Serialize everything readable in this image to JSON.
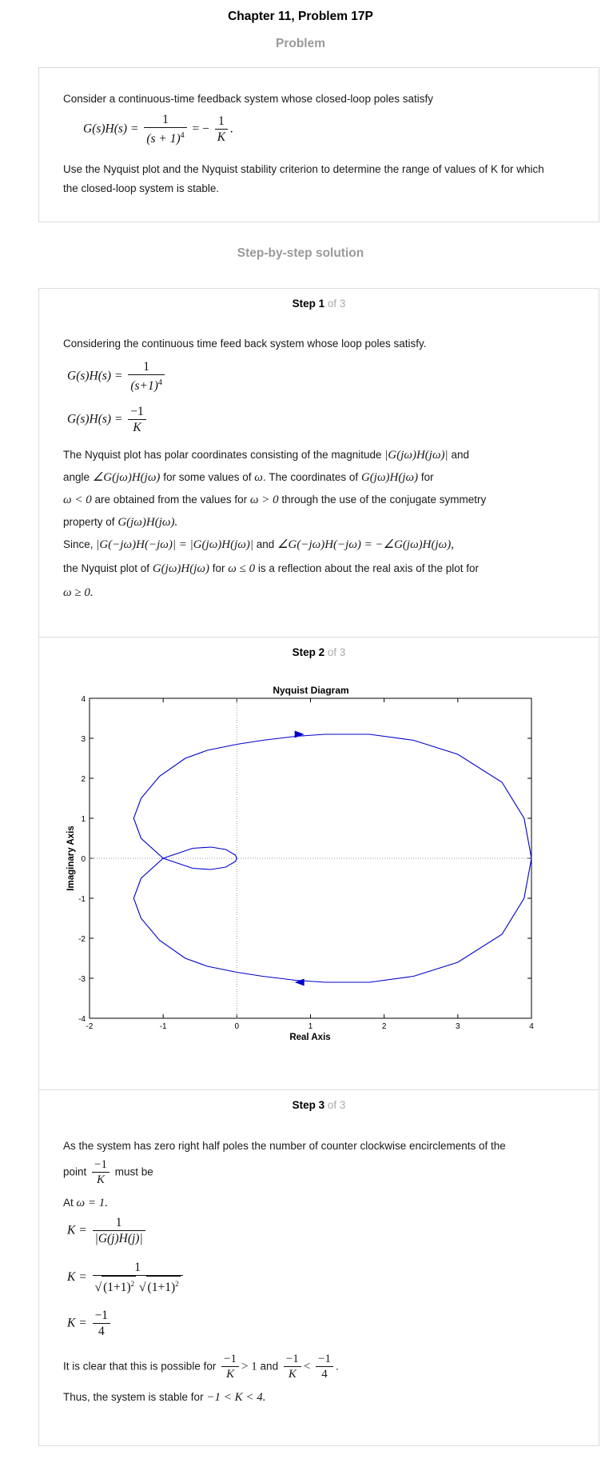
{
  "header": {
    "title": "Chapter 11, Problem 17P",
    "problem_heading": "Problem",
    "solution_heading": "Step-by-step solution"
  },
  "problem": {
    "intro": "Consider a continuous-time feedback system whose closed-loop poles satisfy",
    "eq_lhs": "G(s)H(s) =",
    "eq_num": "1",
    "eq_den": "(s + 1)",
    "eq_den_exp": "4",
    "eq_mid": "= −",
    "eq_rnum": "1",
    "eq_rden": "K",
    "eq_end": ".",
    "question": "Use the Nyquist plot and the Nyquist stability criterion to determine the range of values of K for which the closed-loop system is stable."
  },
  "steps": {
    "of_label": "of 3",
    "step_word": "Step",
    "s1": {
      "num": "1",
      "intro": "Considering the continuous time feed back system whose loop poles satisfy.",
      "eq1_lhs": "G(s)H(s) =",
      "eq1_num": "1",
      "eq1_den": "(s+1)",
      "eq1_exp": "4",
      "eq2_lhs": "G(s)H(s) =",
      "eq2_num": "−1",
      "eq2_den": "K",
      "p1_a": "The Nyquist plot has polar coordinates consisting of the magnitude",
      "p1_mag": "|G(jω)H(jω)|",
      "p1_b": "and",
      "p1_c": "angle",
      "p1_ang": "∠G(jω)H(jω)",
      "p1_d": "for some values of",
      "p1_w": "ω",
      "p1_e": ". The coordinates of",
      "p1_gh": "G(jω)H(jω)",
      "p1_f": "for",
      "p1_wlt": "ω < 0",
      "p1_g": "are obtained from the values for",
      "p1_wgt": "ω > 0",
      "p1_h": "through the use of the conjugate symmetry",
      "p1_i": "property of",
      "p1_gh2": "G(jω)H(jω).",
      "p2_a": "Since,",
      "p2_eq1": "|G(−jω)H(−jω)| = |G(jω)H(jω)|",
      "p2_b": "and",
      "p2_eq2": "∠G(−jω)H(−jω) = −∠G(jω)H(jω),",
      "p2_c": "the Nyquist plot of",
      "p2_gh": "G(jω)H(jω)",
      "p2_d": "for",
      "p2_wle": "ω ≤ 0",
      "p2_e": "is a reflection about the real axis of the plot for",
      "p2_wge": "ω ≥ 0."
    },
    "s2": {
      "num": "2"
    },
    "s3": {
      "num": "3",
      "p1": "As the system has zero right half poles the number of counter clockwise encirclements of the",
      "p2_a": "point",
      "p2_num": "−1",
      "p2_den": "K",
      "p2_b": "must be",
      "at_a": "At",
      "at_eq": "ω = 1.",
      "k1_lhs": "K =",
      "k1_num": "1",
      "k1_den": "|G(j)H(j)|",
      "k2_lhs": "K =",
      "k2_num": "1",
      "k2_den_a": "(1+1)",
      "k2_den_b": "(1+1)",
      "k2_exp": "2",
      "k3_lhs": "K =",
      "k3_num": "−1",
      "k3_den": "4",
      "clear_a": "It is clear that this is possible for",
      "clear_n1": "−1",
      "clear_d1": "K",
      "clear_gt": "> 1",
      "clear_and": "and",
      "clear_n2": "−1",
      "clear_d2": "K",
      "clear_lt": "<",
      "clear_n3": "−1",
      "clear_d3": "4",
      "clear_end": ".",
      "thus": "Thus, the system is stable for",
      "thus_eq": "−1 < K < 4."
    }
  },
  "chart_data": {
    "type": "line",
    "title": "Nyquist Diagram",
    "xlabel": "Real Axis",
    "ylabel": "Imaginary Axis",
    "xlim": [
      -2,
      4
    ],
    "ylim": [
      -4,
      4
    ],
    "xticks": [
      "-2",
      "-1",
      "0",
      "1",
      "2",
      "3",
      "4"
    ],
    "yticks": [
      "4",
      "3",
      "2",
      "1",
      "0",
      "-1",
      "-2",
      "-3",
      "-4"
    ],
    "grid": false,
    "color": "#0000cc",
    "series": [
      {
        "x": [
          4.0,
          3.9,
          3.6,
          3.0,
          2.4,
          1.8,
          1.2,
          0.8,
          0.35,
          0.0,
          -0.4,
          -0.7,
          -1.05,
          -1.3,
          -1.4,
          -1.3,
          -1.0,
          -0.6,
          -0.35,
          -0.15,
          -0.02,
          0.0
        ],
        "y": [
          0.0,
          1.0,
          1.9,
          2.6,
          2.95,
          3.1,
          3.1,
          3.05,
          2.95,
          2.85,
          2.7,
          2.5,
          2.05,
          1.5,
          1.0,
          0.5,
          0.0,
          -0.25,
          -0.28,
          -0.22,
          -0.08,
          0.0
        ]
      }
    ],
    "arrows": [
      {
        "x": 0.85,
        "y": 3.1,
        "dir": "right"
      },
      {
        "x": 0.85,
        "y": -3.1,
        "dir": "left"
      }
    ]
  }
}
